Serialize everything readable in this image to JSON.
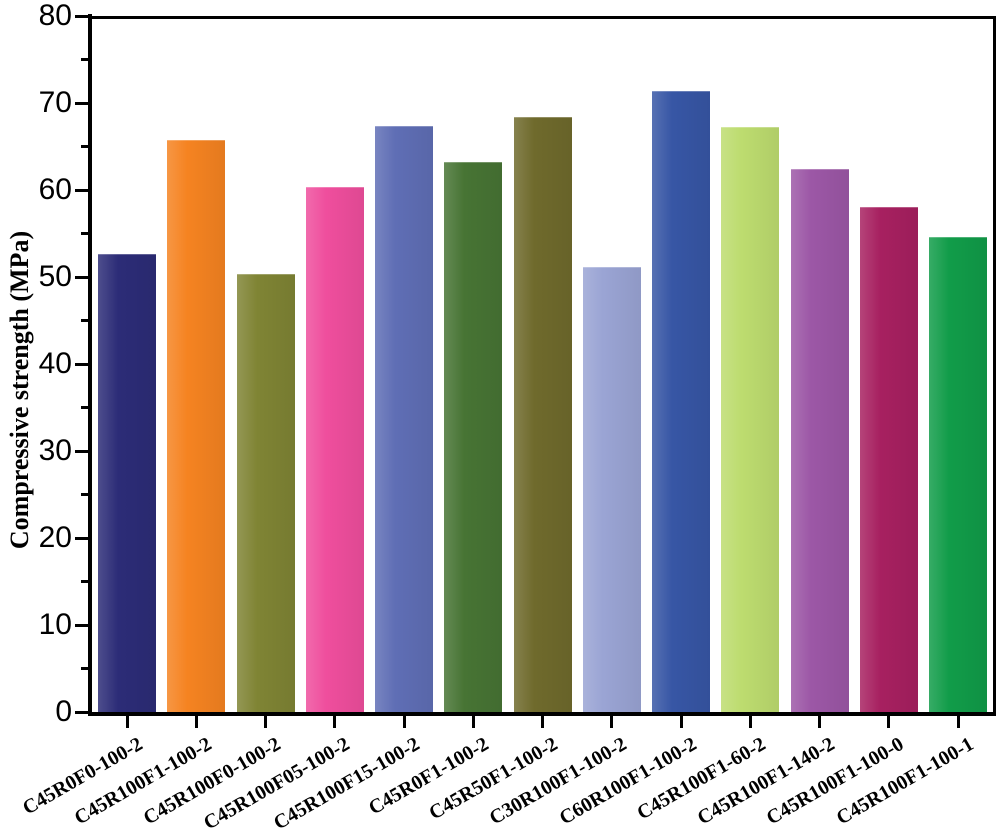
{
  "figure": {
    "background": "#ffffff",
    "frame_color": "#000000"
  },
  "chart_data": {
    "type": "bar",
    "title": "",
    "xlabel": "",
    "ylabel": "Compressive strength (MPa)",
    "ylim": [
      0,
      80
    ],
    "y_major_tick_step": 10,
    "y_minor_tick_step": 5,
    "y_tick_labels": [
      "0",
      "10",
      "20",
      "30",
      "40",
      "50",
      "60",
      "70",
      "80"
    ],
    "grid": false,
    "legend_position": "none",
    "categories": [
      "C45R0F0-100-2",
      "C45R100F1-100-2",
      "C45R100F0-100-2",
      "C45R100F05-100-2",
      "C45R100F15-100-2",
      "C45R0F1-100-2",
      "C45R50F1-100-2",
      "C30R100F1-100-2",
      "C60R100F1-100-2",
      "C45R100F1-60-2",
      "C45R100F1-140-2",
      "C45R100F1-100-0",
      "C45R100F1-100-1"
    ],
    "values": [
      52.7,
      65.8,
      50.3,
      60.4,
      67.3,
      63.2,
      68.4,
      51.2,
      71.4,
      67.2,
      62.4,
      58.1,
      54.6
    ],
    "bar_colors": [
      "#2c2c77",
      "#f58321",
      "#7f8434",
      "#ef4e9d",
      "#5f6eb5",
      "#477434",
      "#6f6a2c",
      "#9aa4d4",
      "#3756a5",
      "#bddc6f",
      "#9c57a6",
      "#a72060",
      "#119c49"
    ]
  }
}
